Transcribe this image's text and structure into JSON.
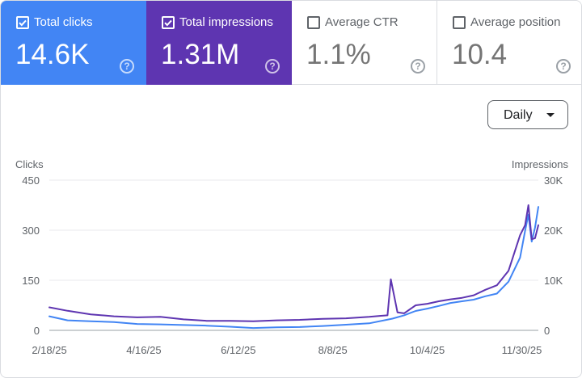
{
  "metrics": [
    {
      "label": "Total clicks",
      "value": "14.6K",
      "checked": true,
      "color": "#4285f4"
    },
    {
      "label": "Total impressions",
      "value": "1.31M",
      "checked": true,
      "color": "#5e35b1"
    },
    {
      "label": "Average CTR",
      "value": "1.1%",
      "checked": false
    },
    {
      "label": "Average position",
      "value": "10.4",
      "checked": false
    }
  ],
  "help_glyph": "?",
  "range_select": {
    "label": "Daily"
  },
  "chart_data": {
    "type": "line",
    "left_axis": {
      "label": "Clicks",
      "ticks": [
        "450",
        "300",
        "150",
        "0"
      ],
      "range": [
        0,
        450
      ]
    },
    "right_axis": {
      "label": "Impressions",
      "ticks": [
        "30K",
        "20K",
        "10K",
        "0"
      ],
      "range": [
        0,
        30000
      ]
    },
    "x_ticks": [
      "2/18/25",
      "4/16/25",
      "6/12/25",
      "8/8/25",
      "10/4/25",
      "11/30/25"
    ],
    "x_start": "2/18/25",
    "x_end": "12/10/25",
    "grid": true,
    "series": [
      {
        "axis": "left",
        "color": "#4285f4",
        "x": [
          "2/18/25",
          "3/1/25",
          "3/15/25",
          "3/29/25",
          "4/12/25",
          "4/26/25",
          "5/10/25",
          "5/24/25",
          "6/7/25",
          "6/21/25",
          "7/5/25",
          "7/19/25",
          "8/2/25",
          "8/16/25",
          "8/30/25",
          "9/13/25",
          "9/20/25",
          "9/27/25",
          "10/4/25",
          "10/11/25",
          "10/18/25",
          "10/25/25",
          "11/1/25",
          "11/8/25",
          "11/15/25",
          "11/22/25",
          "11/29/25",
          "12/2/25",
          "12/4/25",
          "12/6/25",
          "12/8/25",
          "12/10/25"
        ],
        "values": [
          42,
          30,
          27,
          25,
          19,
          18,
          16,
          14,
          11,
          7,
          9,
          10,
          13,
          17,
          21,
          35,
          45,
          58,
          65,
          73,
          82,
          87,
          92,
          102,
          110,
          146,
          218,
          298,
          347,
          266,
          308,
          370
        ]
      },
      {
        "axis": "right",
        "color": "#5e35b1",
        "x": [
          "2/18/25",
          "3/1/25",
          "3/15/25",
          "3/29/25",
          "4/12/25",
          "4/26/25",
          "5/10/25",
          "5/24/25",
          "6/7/25",
          "6/21/25",
          "7/5/25",
          "7/19/25",
          "8/2/25",
          "8/16/25",
          "8/30/25",
          "9/6/25",
          "9/10/25",
          "9/12/25",
          "9/16/25",
          "9/20/25",
          "9/27/25",
          "10/4/25",
          "10/11/25",
          "10/18/25",
          "10/25/25",
          "11/1/25",
          "11/8/25",
          "11/15/25",
          "11/22/25",
          "11/29/25",
          "12/2/25",
          "12/4/25",
          "12/6/25",
          "12/8/25",
          "12/10/25"
        ],
        "values": [
          4600,
          3900,
          3200,
          2800,
          2600,
          2700,
          2200,
          1900,
          1900,
          1800,
          2000,
          2100,
          2300,
          2400,
          2700,
          2900,
          3000,
          10200,
          3600,
          3400,
          5000,
          5300,
          5800,
          6200,
          6500,
          7000,
          8100,
          9000,
          11900,
          19000,
          21000,
          25000,
          18200,
          18400,
          21000
        ]
      }
    ]
  }
}
